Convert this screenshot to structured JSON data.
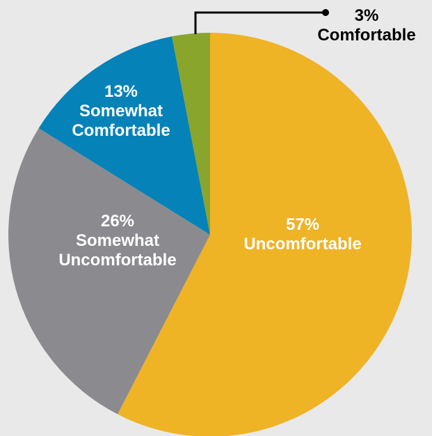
{
  "chart_data": {
    "type": "pie",
    "start": "12 o'clock",
    "direction": "clockwise",
    "slices": [
      {
        "label": "Uncomfortable",
        "value": 57,
        "percent_text": "57%",
        "color": "#efb326"
      },
      {
        "label": "Somewhat Uncomfortable",
        "value": 26,
        "percent_text": "26%",
        "color": "#8b8b8f"
      },
      {
        "label": "Somewhat Comfortable",
        "value": 13,
        "percent_text": "13%",
        "color": "#0582b8"
      },
      {
        "label": "Comfortable",
        "value": 3,
        "percent_text": "3%",
        "color": "#8aa52c"
      }
    ],
    "label_colors": {
      "inside": "#ffffff",
      "outside": "#000000"
    }
  }
}
